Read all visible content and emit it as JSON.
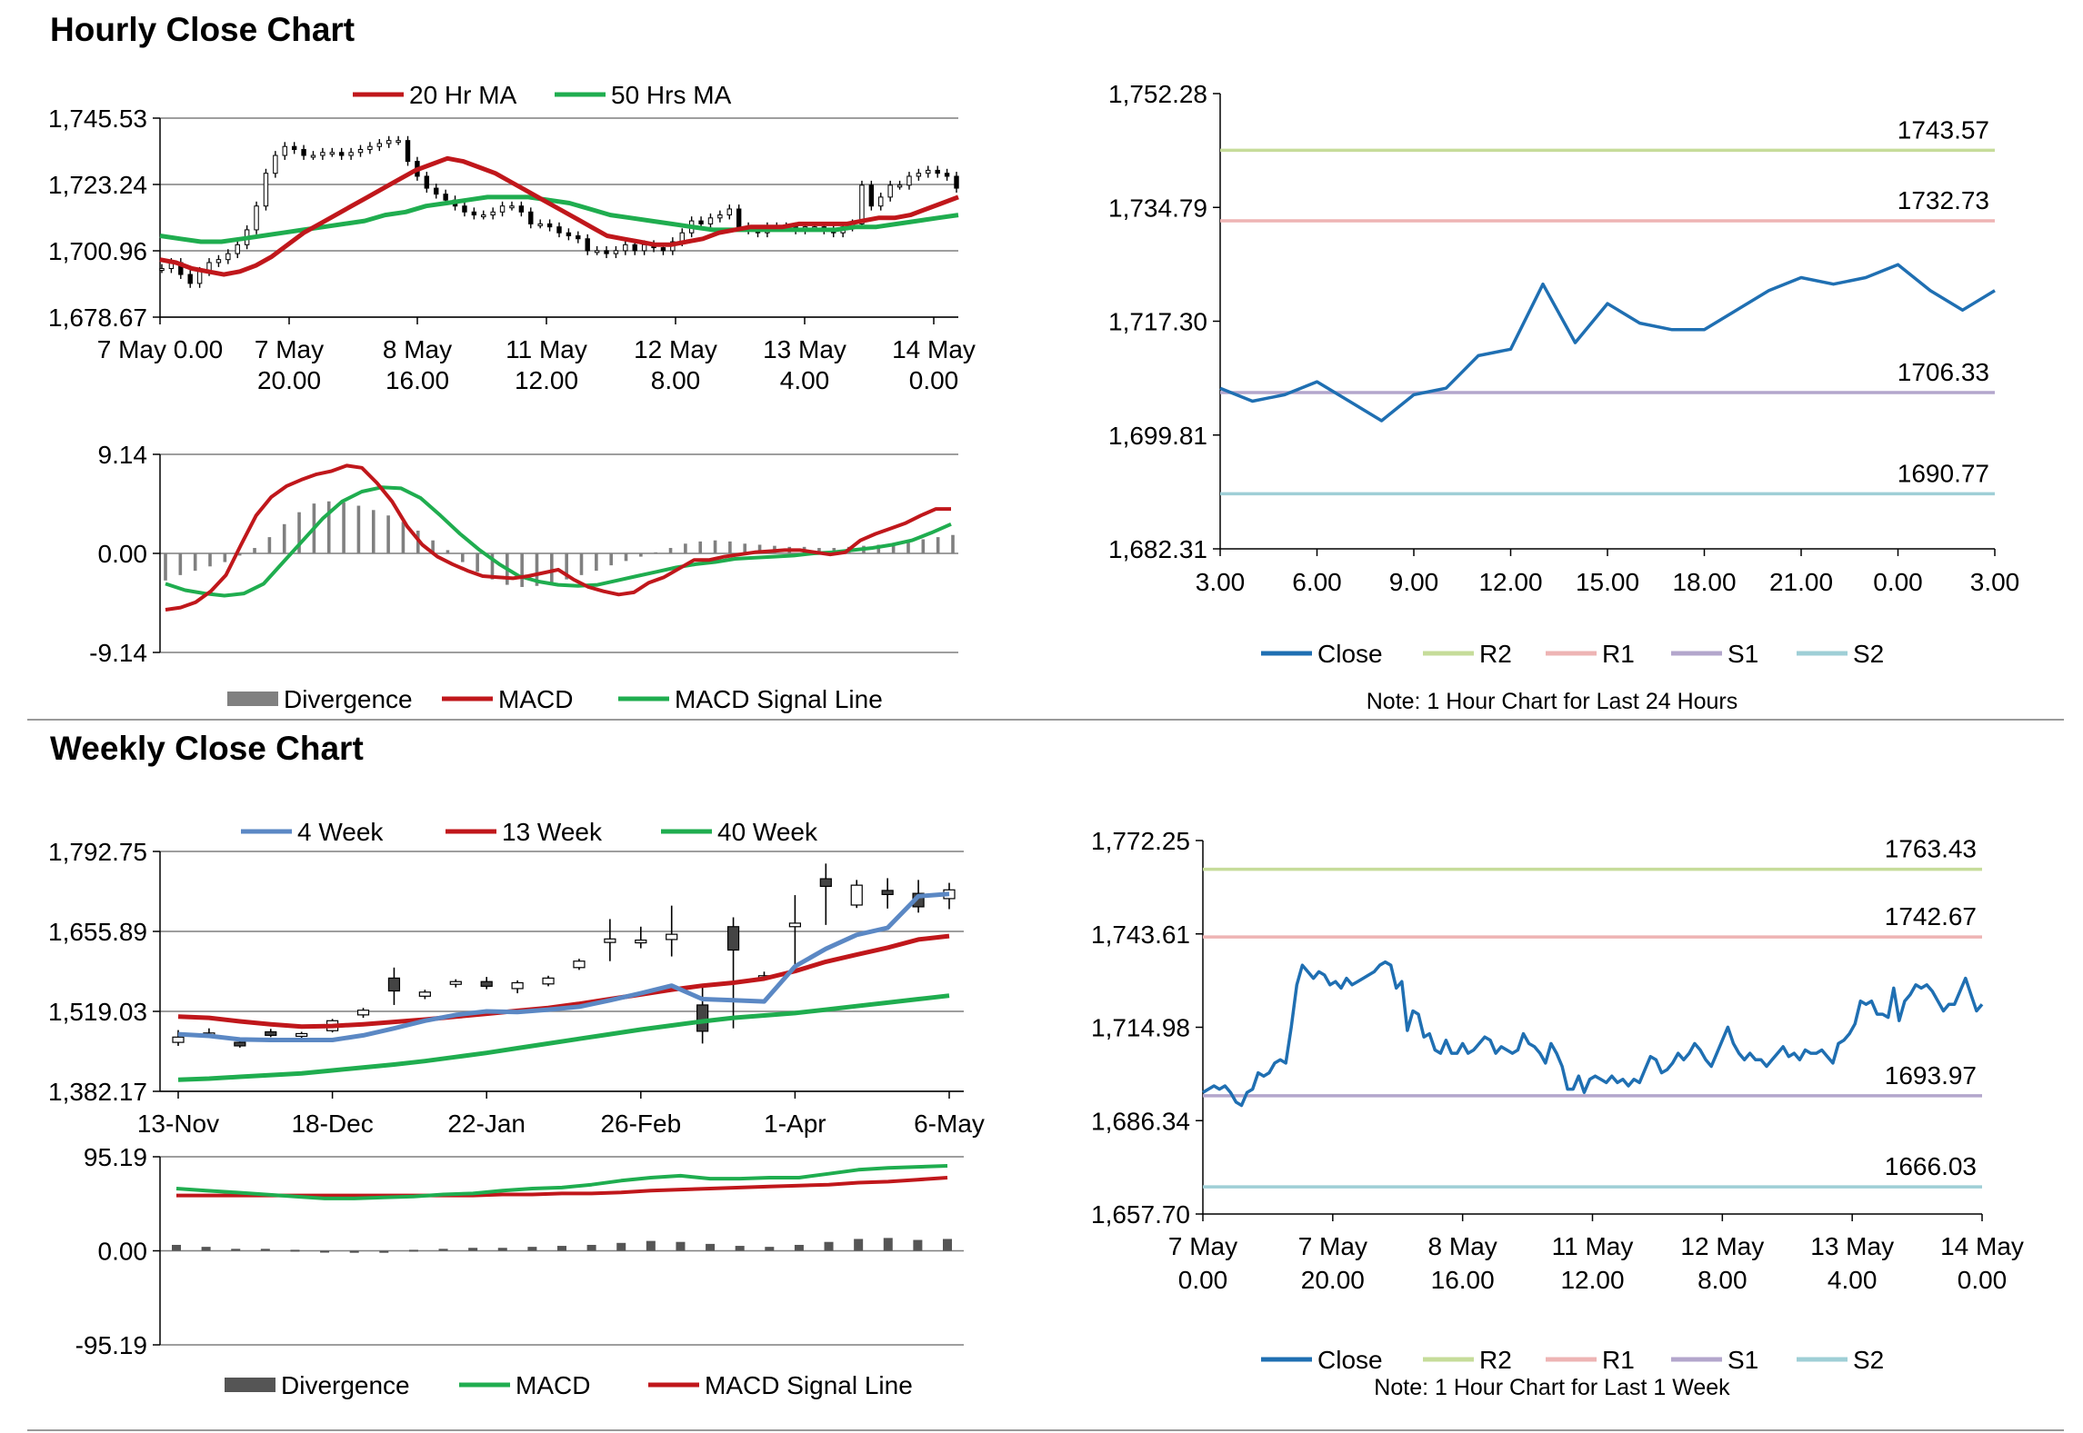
{
  "hourly_section": {
    "title": "Hourly Close Chart"
  },
  "weekly_section": {
    "title": "Weekly Close Chart"
  },
  "colors": {
    "ma_red": "#c0171b",
    "ma_green": "#1fad4f",
    "close_blue": "#1f6fb2",
    "ma4_blue": "#5b88c4",
    "r2": "#c6dc9a",
    "r1": "#eeb4b4",
    "s1": "#b3a6cc",
    "s2": "#9fcfd6",
    "divergence": "#808080",
    "grid": "#7f7f7f"
  },
  "chart_data": [
    {
      "id": "hourly_price",
      "type": "candlestick",
      "legend": [
        "20 Hr MA",
        "50 Hrs MA"
      ],
      "y_ticks": [
        "1,745.53",
        "1,723.24",
        "1,700.96",
        "1,678.67"
      ],
      "ylim": [
        1678.67,
        1745.53
      ],
      "x_ticks": [
        [
          "7 May 0.00",
          ""
        ],
        [
          "7 May",
          "20.00"
        ],
        [
          "8 May",
          "16.00"
        ],
        [
          "11 May",
          "12.00"
        ],
        [
          "12 May",
          "8.00"
        ],
        [
          "13 May",
          "4.00"
        ],
        [
          "14 May",
          "0.00"
        ]
      ],
      "close": [
        1695,
        1697,
        1693,
        1690,
        1694,
        1697,
        1698,
        1700,
        1703,
        1708,
        1716,
        1727,
        1733,
        1736,
        1735,
        1733,
        1733,
        1734,
        1734,
        1733,
        1734,
        1735,
        1736,
        1737,
        1738,
        1738,
        1731,
        1726,
        1722,
        1720,
        1718,
        1716,
        1714,
        1713,
        1713,
        1714,
        1716,
        1716,
        1714,
        1710,
        1710,
        1709,
        1707,
        1706,
        1705,
        1701,
        1701,
        1700,
        1701,
        1703,
        1701,
        1703,
        1702,
        1701,
        1704,
        1707,
        1711,
        1710,
        1712,
        1713,
        1715,
        1709,
        1708,
        1707,
        1709,
        1709,
        1709,
        1708,
        1709,
        1709,
        1708,
        1707,
        1709,
        1710,
        1723,
        1716,
        1719,
        1723,
        1723,
        1726,
        1727,
        1728,
        1727,
        1726,
        1722
      ],
      "series": [
        {
          "name": "20 Hr MA",
          "values": [
            1698,
            1697,
            1695,
            1694,
            1693,
            1694,
            1696,
            1699,
            1703,
            1707,
            1710,
            1713,
            1716,
            1719,
            1722,
            1725,
            1728,
            1730,
            1732,
            1731,
            1729,
            1727,
            1724,
            1721,
            1718,
            1715,
            1712,
            1709,
            1706,
            1705,
            1704,
            1703,
            1703,
            1704,
            1705,
            1707,
            1708,
            1709,
            1709,
            1709,
            1710,
            1710,
            1710,
            1710,
            1711,
            1712,
            1712,
            1713,
            1715,
            1717,
            1719
          ]
        },
        {
          "name": "50 Hrs MA",
          "values": [
            1706,
            1705,
            1704,
            1704,
            1705,
            1706,
            1707,
            1708,
            1709,
            1710,
            1711,
            1713,
            1714,
            1716,
            1717,
            1718,
            1719,
            1719,
            1719,
            1718,
            1717,
            1715,
            1713,
            1712,
            1711,
            1710,
            1709,
            1708,
            1708,
            1708,
            1708,
            1708,
            1708,
            1708,
            1709,
            1709,
            1710,
            1711,
            1712,
            1713
          ]
        }
      ]
    },
    {
      "id": "hourly_macd",
      "type": "line",
      "legend": [
        "Divergence",
        "MACD",
        "MACD Signal Line"
      ],
      "y_ticks": [
        "9.14",
        "0.00",
        "-9.14"
      ],
      "ylim": [
        -9.14,
        9.14
      ],
      "divergence": [
        -2.5,
        -2,
        -1.6,
        -1.2,
        -0.8,
        -0.2,
        0.5,
        1.5,
        2.7,
        3.8,
        4.6,
        4.8,
        4.7,
        4.4,
        4,
        3.5,
        2.9,
        2.1,
        1.2,
        0.3,
        -0.8,
        -1.7,
        -2.4,
        -2.9,
        -3.1,
        -3,
        -2.8,
        -2.4,
        -2,
        -1.6,
        -1.1,
        -0.7,
        -0.3,
        0.1,
        0.5,
        0.9,
        1.1,
        1.2,
        1.1,
        0.9,
        0.8,
        0.7,
        0.6,
        0.6,
        0.5,
        0.5,
        0.6,
        0.7,
        0.8,
        0.9,
        1.1,
        1.3,
        1.5,
        1.7
      ],
      "series": [
        {
          "name": "MACD",
          "values": [
            -5.2,
            -5,
            -4.5,
            -3.5,
            -2,
            0.8,
            3.5,
            5.2,
            6.2,
            6.8,
            7.3,
            7.6,
            8.1,
            7.9,
            6.5,
            4.8,
            2.5,
            0.8,
            -0.3,
            -1,
            -1.6,
            -2.1,
            -2.2,
            -2.3,
            -2.1,
            -1.8,
            -1.5,
            -2.4,
            -3.1,
            -3.5,
            -3.8,
            -3.6,
            -2.7,
            -2.2,
            -1.4,
            -0.6,
            -0.6,
            -0.3,
            -0.1,
            0.1,
            0.2,
            0.3,
            0.3,
            0.1,
            -0.1,
            0.1,
            1.2,
            1.8,
            2.3,
            2.8,
            3.5,
            4.1,
            4.1
          ]
        },
        {
          "name": "MACD Signal Line",
          "values": [
            -2.8,
            -3.4,
            -3.7,
            -3.9,
            -3.7,
            -2.8,
            -0.8,
            1.2,
            3.2,
            4.8,
            5.7,
            6.1,
            6,
            5.1,
            3.5,
            1.8,
            0.3,
            -1,
            -2.1,
            -2.6,
            -2.9,
            -3,
            -2.9,
            -2.5,
            -2.1,
            -1.7,
            -1.3,
            -1,
            -0.8,
            -0.5,
            -0.4,
            -0.3,
            -0.2,
            0,
            0.1,
            0.3,
            0.5,
            0.8,
            1.2,
            1.9,
            2.7
          ]
        }
      ]
    },
    {
      "id": "hourly_24h",
      "type": "line",
      "y_ticks": [
        "1,752.28",
        "1,734.79",
        "1,717.30",
        "1,699.81",
        "1,682.31"
      ],
      "ylim": [
        1682.31,
        1752.28
      ],
      "x_ticks": [
        "3.00",
        "6.00",
        "9.00",
        "12.00",
        "15.00",
        "18.00",
        "21.00",
        "0.00",
        "3.00"
      ],
      "series": [
        {
          "name": "Close",
          "x": [
            3,
            4,
            5,
            6,
            7,
            8,
            9,
            10,
            11,
            12,
            13,
            14,
            15,
            16,
            17,
            18,
            19,
            20,
            21,
            22,
            23,
            24,
            25,
            26,
            27
          ],
          "values": [
            1707,
            1705,
            1706,
            1708,
            1705,
            1702,
            1706,
            1707,
            1712,
            1713,
            1723,
            1714,
            1720,
            1717,
            1716,
            1716,
            1719,
            1722,
            1724,
            1723,
            1724,
            1726,
            1722,
            1719,
            1722
          ]
        }
      ],
      "levels": [
        {
          "name": "R2",
          "value": 1743.57,
          "label": "1743.57"
        },
        {
          "name": "R1",
          "value": 1732.73,
          "label": "1732.73"
        },
        {
          "name": "S1",
          "value": 1706.33,
          "label": "1706.33"
        },
        {
          "name": "S2",
          "value": 1690.77,
          "label": "1690.77"
        }
      ],
      "legend": [
        "Close",
        "R2",
        "R1",
        "S1",
        "S2"
      ],
      "note": "Note: 1 Hour Chart for Last 24 Hours"
    },
    {
      "id": "weekly_price",
      "type": "candlestick",
      "legend": [
        "4 Week",
        "13 Week",
        "40 Week"
      ],
      "y_ticks": [
        "1,792.75",
        "1,655.89",
        "1,519.03",
        "1,382.17"
      ],
      "ylim": [
        1382.17,
        1792.75
      ],
      "x_ticks": [
        "13-Nov",
        "18-Dec",
        "22-Jan",
        "26-Feb",
        "1-Apr",
        "6-May"
      ],
      "candles": [
        {
          "o": 1466,
          "c": 1475,
          "h": 1487,
          "l": 1460
        },
        {
          "o": 1482,
          "c": 1482,
          "h": 1490,
          "l": 1476
        },
        {
          "o": 1466,
          "c": 1460,
          "h": 1473,
          "l": 1457
        },
        {
          "o": 1484,
          "c": 1478,
          "h": 1489,
          "l": 1475
        },
        {
          "o": 1478,
          "c": 1481,
          "h": 1484,
          "l": 1472
        },
        {
          "o": 1486,
          "c": 1503,
          "h": 1506,
          "l": 1483
        },
        {
          "o": 1513,
          "c": 1521,
          "h": 1525,
          "l": 1508
        },
        {
          "o": 1576,
          "c": 1554,
          "h": 1594,
          "l": 1530
        },
        {
          "o": 1545,
          "c": 1552,
          "h": 1556,
          "l": 1540
        },
        {
          "o": 1566,
          "c": 1570,
          "h": 1574,
          "l": 1560
        },
        {
          "o": 1570,
          "c": 1562,
          "h": 1578,
          "l": 1557
        },
        {
          "o": 1558,
          "c": 1568,
          "h": 1572,
          "l": 1550
        },
        {
          "o": 1566,
          "c": 1576,
          "h": 1580,
          "l": 1562
        },
        {
          "o": 1594,
          "c": 1605,
          "h": 1609,
          "l": 1590
        },
        {
          "o": 1637,
          "c": 1643,
          "h": 1677,
          "l": 1605
        },
        {
          "o": 1641,
          "c": 1641,
          "h": 1664,
          "l": 1627
        },
        {
          "o": 1642,
          "c": 1651,
          "h": 1700,
          "l": 1613
        },
        {
          "o": 1530,
          "c": 1485,
          "h": 1563,
          "l": 1464
        },
        {
          "o": 1664,
          "c": 1624,
          "h": 1680,
          "l": 1490
        },
        {
          "o": 1576,
          "c": 1580,
          "h": 1587,
          "l": 1572
        },
        {
          "o": 1664,
          "c": 1670,
          "h": 1718,
          "l": 1597
        },
        {
          "o": 1746,
          "c": 1733,
          "h": 1772,
          "l": 1667
        },
        {
          "o": 1701,
          "c": 1735,
          "h": 1744,
          "l": 1696
        },
        {
          "o": 1726,
          "c": 1719,
          "h": 1747,
          "l": 1695
        },
        {
          "o": 1721,
          "c": 1698,
          "h": 1744,
          "l": 1688
        },
        {
          "o": 1712,
          "c": 1727,
          "h": 1739,
          "l": 1694
        }
      ],
      "series": [
        {
          "name": "4 Week",
          "values": [
            1480,
            1477,
            1471,
            1470,
            1470,
            1470,
            1478,
            1490,
            1503,
            1513,
            1519,
            1518,
            1522,
            1527,
            1538,
            1550,
            1563,
            1540,
            1538,
            1536,
            1596,
            1626,
            1650,
            1662,
            1716,
            1720
          ]
        },
        {
          "name": "13 Week",
          "values": [
            1510,
            1508,
            1502,
            1497,
            1493,
            1494,
            1497,
            1501,
            1505,
            1510,
            1515,
            1520,
            1525,
            1532,
            1540,
            1548,
            1556,
            1563,
            1568,
            1575,
            1588,
            1604,
            1616,
            1628,
            1642,
            1648
          ]
        },
        {
          "name": "40 Week",
          "values": [
            1402,
            1404,
            1407,
            1410,
            1413,
            1418,
            1423,
            1428,
            1434,
            1441,
            1448,
            1456,
            1464,
            1472,
            1480,
            1488,
            1495,
            1502,
            1508,
            1512,
            1516,
            1522,
            1528,
            1534,
            1540,
            1546
          ]
        }
      ]
    },
    {
      "id": "weekly_macd",
      "type": "line",
      "legend": [
        "Divergence",
        "MACD",
        "MACD Signal Line"
      ],
      "y_ticks": [
        "95.19",
        "0.00",
        "-95.19"
      ],
      "ylim": [
        -95.19,
        95.19
      ],
      "divergence": [
        6,
        4,
        2,
        2,
        1,
        -1,
        -2,
        -2,
        1,
        2,
        3,
        3,
        4,
        5,
        6,
        8,
        10,
        9,
        7,
        5,
        4,
        6,
        9,
        12,
        13,
        11,
        12
      ],
      "series": [
        {
          "name": "MACD",
          "values": [
            63,
            61,
            59,
            57,
            55,
            53,
            53,
            54,
            55,
            57,
            58,
            61,
            63,
            64,
            67,
            71,
            74,
            76,
            73,
            73,
            74,
            74,
            78,
            82,
            84,
            85,
            86
          ]
        },
        {
          "name": "MACD Signal Line",
          "values": [
            56,
            56,
            56,
            56,
            56,
            56,
            56,
            56,
            56,
            56,
            56,
            57,
            57,
            58,
            58,
            59,
            61,
            62,
            63,
            64,
            65,
            66,
            67,
            69,
            70,
            72,
            74
          ]
        }
      ]
    },
    {
      "id": "weekly_1w",
      "type": "line",
      "y_ticks": [
        "1,772.25",
        "1,743.61",
        "1,714.98",
        "1,686.34",
        "1,657.70"
      ],
      "ylim": [
        1657.7,
        1772.25
      ],
      "x_ticks": [
        [
          "7 May",
          "0.00"
        ],
        [
          "7 May",
          "20.00"
        ],
        [
          "8 May",
          "16.00"
        ],
        [
          "11 May",
          "12.00"
        ],
        [
          "12 May",
          "8.00"
        ],
        [
          "13 May",
          "4.00"
        ],
        [
          "14 May",
          "0.00"
        ]
      ],
      "series": [
        {
          "name": "Close",
          "values": [
            1695,
            1696,
            1697,
            1696,
            1697,
            1695,
            1692,
            1691,
            1695,
            1696,
            1701,
            1700,
            1701,
            1704,
            1705,
            1704,
            1715,
            1728,
            1734,
            1732,
            1730,
            1732,
            1731,
            1728,
            1729,
            1727,
            1730,
            1728,
            1729,
            1730,
            1731,
            1732,
            1734,
            1735,
            1734,
            1727,
            1729,
            1714,
            1720,
            1719,
            1712,
            1713,
            1708,
            1707,
            1711,
            1707,
            1707,
            1710,
            1707,
            1708,
            1710,
            1712,
            1711,
            1707,
            1709,
            1708,
            1707,
            1708,
            1713,
            1710,
            1709,
            1707,
            1704,
            1710,
            1707,
            1703,
            1696,
            1696,
            1700,
            1695,
            1699,
            1700,
            1699,
            1698,
            1700,
            1698,
            1699,
            1697,
            1699,
            1698,
            1702,
            1706,
            1705,
            1701,
            1702,
            1704,
            1707,
            1705,
            1707,
            1710,
            1708,
            1705,
            1703,
            1707,
            1711,
            1715,
            1710,
            1707,
            1705,
            1707,
            1705,
            1705,
            1703,
            1705,
            1707,
            1709,
            1706,
            1707,
            1705,
            1708,
            1707,
            1707,
            1708,
            1706,
            1704,
            1710,
            1711,
            1713,
            1716,
            1723,
            1722,
            1723,
            1719,
            1719,
            1718,
            1727,
            1717,
            1723,
            1725,
            1728,
            1727,
            1728,
            1726,
            1723,
            1720,
            1722,
            1722,
            1726,
            1730,
            1725,
            1720,
            1722
          ]
        }
      ],
      "levels": [
        {
          "name": "R2",
          "value": 1763.43,
          "label": "1763.43"
        },
        {
          "name": "R1",
          "value": 1742.67,
          "label": "1742.67"
        },
        {
          "name": "S1",
          "value": 1693.97,
          "label": "1693.97"
        },
        {
          "name": "S2",
          "value": 1666.03,
          "label": "1666.03"
        }
      ],
      "legend": [
        "Close",
        "R2",
        "R1",
        "S1",
        "S2"
      ],
      "note": "Note: 1 Hour Chart for Last 1 Week"
    }
  ]
}
